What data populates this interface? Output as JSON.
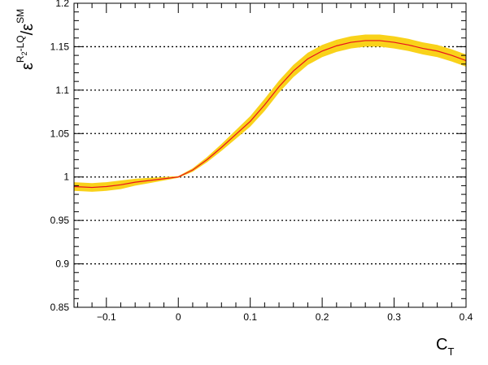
{
  "chart_data": {
    "type": "line",
    "title": "",
    "xlabel": {
      "main": "C",
      "sub": "T"
    },
    "ylabel": {
      "eps_main": "ε",
      "num_sup_a": "R",
      "num_sup_sub": "2",
      "num_sup_b": "-LQ",
      "slash": "/",
      "den_sup": "SM"
    },
    "xlim": [
      -0.145,
      0.4
    ],
    "ylim": [
      0.85,
      1.2
    ],
    "x_ticks": [
      -0.1,
      0,
      0.1,
      0.2,
      0.3,
      0.4
    ],
    "x_tick_labels": [
      "−0.1",
      "0",
      "0.1",
      "0.2",
      "0.3",
      "0.4"
    ],
    "y_ticks": [
      0.85,
      0.9,
      0.95,
      1.0,
      1.05,
      1.1,
      1.15,
      1.2
    ],
    "y_tick_labels": [
      "0.85",
      "0.9",
      "0.95",
      "1",
      "1.05",
      "1.1",
      "1.15",
      "1.2"
    ],
    "gridlines_y": [
      0.9,
      0.95,
      1.0,
      1.05,
      1.1,
      1.15
    ],
    "grid": "dotted horizontal",
    "colors": {
      "line": "#e8101e",
      "band": "#f9d21a",
      "grid": "#000000"
    },
    "series": [
      {
        "type": "line-with-band",
        "x": [
          -0.145,
          -0.12,
          -0.1,
          -0.08,
          -0.06,
          -0.04,
          -0.02,
          0.0,
          0.02,
          0.04,
          0.06,
          0.08,
          0.1,
          0.12,
          0.14,
          0.16,
          0.18,
          0.2,
          0.22,
          0.24,
          0.26,
          0.28,
          0.3,
          0.32,
          0.34,
          0.36,
          0.38,
          0.4
        ],
        "y": [
          0.989,
          0.988,
          0.989,
          0.991,
          0.994,
          0.996,
          0.998,
          1.0,
          1.008,
          1.02,
          1.034,
          1.049,
          1.064,
          1.083,
          1.104,
          1.122,
          1.136,
          1.145,
          1.151,
          1.155,
          1.157,
          1.157,
          1.155,
          1.152,
          1.148,
          1.145,
          1.14,
          1.134
        ],
        "band_halfwidth": [
          0.005,
          0.005,
          0.005,
          0.005,
          0.004,
          0.003,
          0.002,
          0.001,
          0.002,
          0.003,
          0.004,
          0.005,
          0.006,
          0.007,
          0.007,
          0.007,
          0.007,
          0.007,
          0.007,
          0.007,
          0.007,
          0.007,
          0.007,
          0.007,
          0.007,
          0.007,
          0.007,
          0.007
        ]
      }
    ]
  }
}
